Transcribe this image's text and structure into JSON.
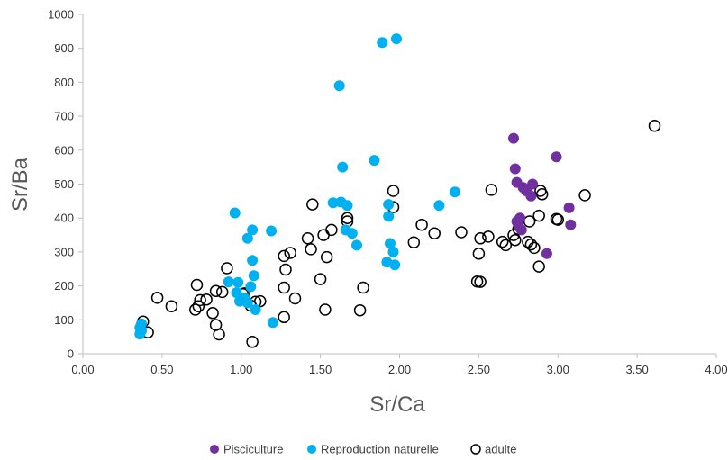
{
  "chart_data": {
    "type": "scatter",
    "title": "",
    "xlabel": "Sr/Ca",
    "ylabel": "Sr/Ba",
    "xlim": [
      0,
      4
    ],
    "ylim": [
      0,
      1000
    ],
    "x_ticks": [
      "0.00",
      "0.50",
      "1.00",
      "1.50",
      "2.00",
      "2.50",
      "3.00",
      "3.50",
      "4.00"
    ],
    "y_ticks": [
      "0",
      "100",
      "200",
      "300",
      "400",
      "500",
      "600",
      "700",
      "800",
      "900",
      "1000"
    ],
    "grid": false,
    "legend_position": "bottom",
    "series": [
      {
        "name": "Pisciculture",
        "color": "#7030A0",
        "marker": "filled-circle",
        "points": [
          [
            2.72,
            635
          ],
          [
            2.73,
            545
          ],
          [
            2.74,
            505
          ],
          [
            2.78,
            490
          ],
          [
            2.8,
            480
          ],
          [
            2.83,
            465
          ],
          [
            2.84,
            500
          ],
          [
            2.99,
            580
          ],
          [
            3.07,
            430
          ],
          [
            3.08,
            380
          ],
          [
            2.93,
            295
          ],
          [
            2.74,
            390
          ],
          [
            2.76,
            400
          ],
          [
            2.75,
            380
          ],
          [
            2.77,
            365
          ]
        ]
      },
      {
        "name": "Reproduction naturelle",
        "color": "#00B0F0",
        "marker": "filled-circle",
        "points": [
          [
            1.98,
            928
          ],
          [
            1.89,
            917
          ],
          [
            1.62,
            790
          ],
          [
            1.84,
            570
          ],
          [
            1.64,
            550
          ],
          [
            2.35,
            477
          ],
          [
            1.58,
            445
          ],
          [
            1.63,
            447
          ],
          [
            1.67,
            437
          ],
          [
            1.93,
            440
          ],
          [
            2.25,
            437
          ],
          [
            0.96,
            415
          ],
          [
            1.93,
            405
          ],
          [
            1.66,
            365
          ],
          [
            1.73,
            320
          ],
          [
            1.07,
            365
          ],
          [
            1.19,
            362
          ],
          [
            1.04,
            340
          ],
          [
            1.7,
            355
          ],
          [
            1.94,
            325
          ],
          [
            1.96,
            300
          ],
          [
            1.92,
            270
          ],
          [
            1.97,
            262
          ],
          [
            1.07,
            275
          ],
          [
            1.08,
            230
          ],
          [
            0.92,
            212
          ],
          [
            0.98,
            210
          ],
          [
            1.06,
            198
          ],
          [
            0.97,
            180
          ],
          [
            1.02,
            165
          ],
          [
            0.99,
            155
          ],
          [
            1.04,
            150
          ],
          [
            1.09,
            130
          ],
          [
            1.2,
            92
          ],
          [
            0.37,
            88
          ],
          [
            0.36,
            77
          ],
          [
            0.37,
            68
          ],
          [
            0.36,
            58
          ]
        ]
      },
      {
        "name": "adulte",
        "color": "#000000",
        "marker": "hollow-circle",
        "points": [
          [
            3.61,
            672
          ],
          [
            3.17,
            467
          ],
          [
            2.89,
            480
          ],
          [
            2.9,
            470
          ],
          [
            2.99,
            397
          ],
          [
            3.0,
            395
          ],
          [
            2.88,
            407
          ],
          [
            2.58,
            483
          ],
          [
            2.82,
            390
          ],
          [
            2.72,
            350
          ],
          [
            2.75,
            368
          ],
          [
            2.73,
            335
          ],
          [
            2.83,
            322
          ],
          [
            2.85,
            312
          ],
          [
            2.81,
            330
          ],
          [
            2.67,
            320
          ],
          [
            2.65,
            330
          ],
          [
            2.56,
            345
          ],
          [
            2.51,
            340
          ],
          [
            2.5,
            295
          ],
          [
            2.49,
            213
          ],
          [
            2.51,
            212
          ],
          [
            2.88,
            257
          ],
          [
            2.39,
            358
          ],
          [
            2.22,
            355
          ],
          [
            2.14,
            380
          ],
          [
            2.09,
            328
          ],
          [
            1.96,
            480
          ],
          [
            1.96,
            432
          ],
          [
            1.67,
            400
          ],
          [
            1.67,
            390
          ],
          [
            1.57,
            365
          ],
          [
            1.52,
            350
          ],
          [
            1.45,
            440
          ],
          [
            1.44,
            308
          ],
          [
            1.42,
            340
          ],
          [
            1.54,
            285
          ],
          [
            1.31,
            297
          ],
          [
            1.27,
            288
          ],
          [
            1.28,
            248
          ],
          [
            1.27,
            195
          ],
          [
            1.5,
            220
          ],
          [
            1.34,
            163
          ],
          [
            1.77,
            195
          ],
          [
            1.75,
            128
          ],
          [
            1.53,
            130
          ],
          [
            1.27,
            108
          ],
          [
            0.91,
            252
          ],
          [
            0.72,
            203
          ],
          [
            0.84,
            185
          ],
          [
            0.88,
            182
          ],
          [
            0.78,
            160
          ],
          [
            0.74,
            158
          ],
          [
            0.73,
            140
          ],
          [
            0.71,
            130
          ],
          [
            1.02,
            178
          ],
          [
            1.01,
            176
          ],
          [
            1.06,
            142
          ],
          [
            1.09,
            153
          ],
          [
            1.12,
            155
          ],
          [
            0.82,
            120
          ],
          [
            0.84,
            85
          ],
          [
            0.86,
            57
          ],
          [
            1.07,
            35
          ],
          [
            0.47,
            165
          ],
          [
            0.56,
            140
          ],
          [
            0.38,
            95
          ],
          [
            0.41,
            63
          ]
        ]
      }
    ]
  }
}
